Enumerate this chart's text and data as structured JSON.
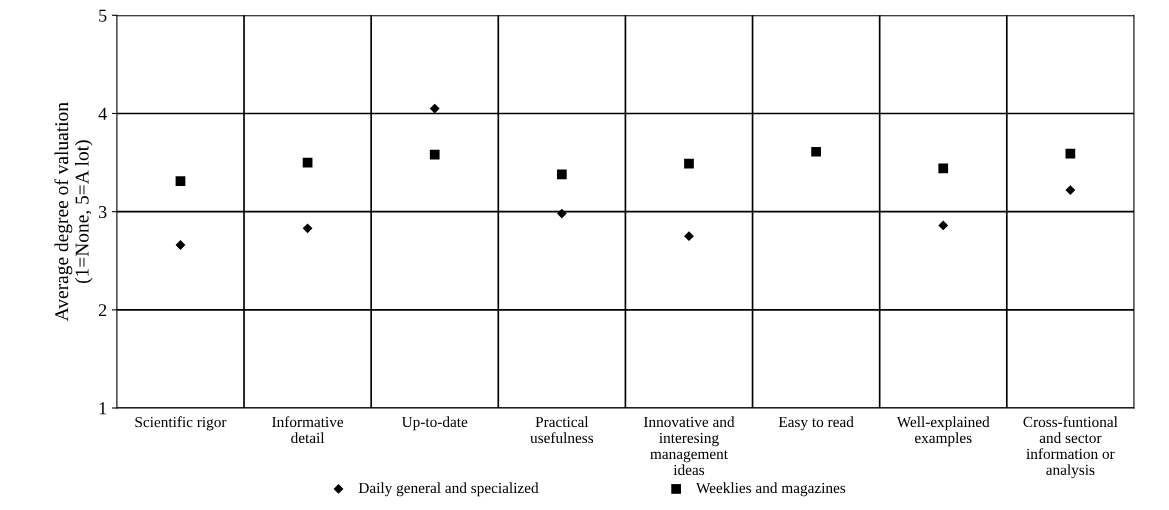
{
  "chart_data": {
    "type": "scatter",
    "ylabel": "Average degree of valuation\n(1=None, 5=A lot)",
    "categories": [
      "Scientific rigor",
      "Informative\ndetail",
      "Up-to-date",
      "Practical\nusefulness",
      "Innovative and\ninteresing\nmanagement\nideas",
      "Easy to read",
      "Well-explained\nexamples",
      "Cross-funtional\nand sector\ninformation or\nanalysis"
    ],
    "series": [
      {
        "name": "Daily general and specialized",
        "color": "#000000",
        "marker": "diamond",
        "values": [
          2.66,
          2.83,
          4.05,
          2.98,
          2.75,
          null,
          2.86,
          3.22
        ]
      },
      {
        "name": "Weeklies and magazines",
        "color": "#000000",
        "marker": "square",
        "values": [
          3.31,
          3.5,
          3.58,
          3.38,
          3.49,
          3.61,
          3.44,
          3.59
        ]
      }
    ],
    "ylim": [
      1,
      5
    ],
    "yticks": [
      1,
      2,
      3,
      4,
      5
    ],
    "grid": true,
    "legend": "bottom"
  }
}
